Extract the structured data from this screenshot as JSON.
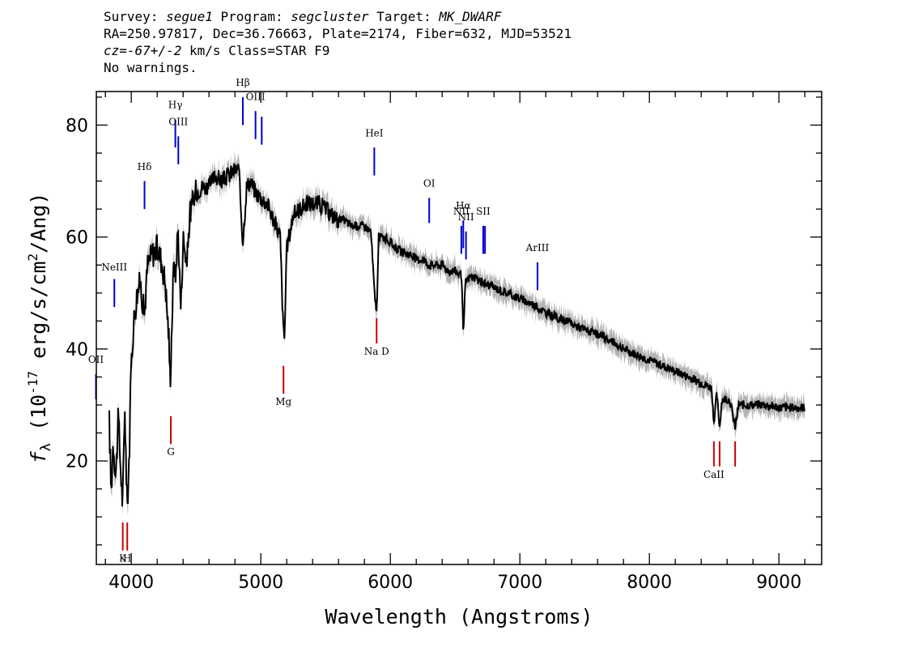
{
  "header": {
    "survey_label": "Survey:",
    "survey_value": "segue1",
    "program_label": "Program:",
    "program_value": "segcluster",
    "target_label": "Target:",
    "target_value": "MK_DWARF",
    "line2": "RA=250.97817, Dec=36.76663, Plate=2174, Fiber=632, MJD=53521",
    "cz_prefix": "cz=",
    "cz_value": "-67+/-2",
    "cz_suffix": " km/s Class=STAR F9",
    "line4": "No warnings."
  },
  "chart_data": {
    "type": "line",
    "xlabel": "Wavelength (Angstroms)",
    "ylabel_prefix": "f",
    "ylabel_sub": "λ",
    "ylabel_main": " (10",
    "ylabel_exp": "-17",
    "ylabel_rest": " erg/s/cm",
    "ylabel_exp2": "2",
    "ylabel_end": "/Ang)",
    "xlim": [
      3730,
      9330
    ],
    "ylim": [
      1.5,
      86
    ],
    "xticks": [
      4000,
      5000,
      6000,
      7000,
      8000,
      9000
    ],
    "yticks": [
      20,
      40,
      60,
      80
    ],
    "x_minor_step": 200,
    "y_minor_step": 5,
    "colors": {
      "spectrum": "#000000",
      "error_band": "#b4b4b4",
      "emission": "#0000cc",
      "absorption": "#cc0000"
    },
    "spectrum_anchors": [
      [
        3830,
        27
      ],
      [
        3845,
        14
      ],
      [
        3860,
        24
      ],
      [
        3880,
        17
      ],
      [
        3900,
        28
      ],
      [
        3915,
        20
      ],
      [
        3933,
        12
      ],
      [
        3950,
        30
      ],
      [
        3968,
        11
      ],
      [
        3985,
        22
      ],
      [
        4000,
        38
      ],
      [
        4020,
        45
      ],
      [
        4045,
        50
      ],
      [
        4070,
        52
      ],
      [
        4101,
        46
      ],
      [
        4125,
        55
      ],
      [
        4160,
        57
      ],
      [
        4200,
        58
      ],
      [
        4230,
        56
      ],
      [
        4262,
        52
      ],
      [
        4290,
        42
      ],
      [
        4300,
        34
      ],
      [
        4310,
        42
      ],
      [
        4330,
        57
      ],
      [
        4340,
        52
      ],
      [
        4360,
        62
      ],
      [
        4383,
        47
      ],
      [
        4400,
        60
      ],
      [
        4430,
        55
      ],
      [
        4450,
        64
      ],
      [
        4500,
        68
      ],
      [
        4550,
        69
      ],
      [
        4600,
        69
      ],
      [
        4650,
        71
      ],
      [
        4700,
        70
      ],
      [
        4750,
        71
      ],
      [
        4800,
        72
      ],
      [
        4830,
        72
      ],
      [
        4861,
        59
      ],
      [
        4890,
        69
      ],
      [
        4920,
        70
      ],
      [
        4960,
        68
      ],
      [
        5000,
        67
      ],
      [
        5050,
        66
      ],
      [
        5100,
        63
      ],
      [
        5150,
        60
      ],
      [
        5172,
        44
      ],
      [
        5183,
        42
      ],
      [
        5200,
        58
      ],
      [
        5250,
        64
      ],
      [
        5300,
        65
      ],
      [
        5350,
        66
      ],
      [
        5400,
        66
      ],
      [
        5450,
        66
      ],
      [
        5500,
        65
      ],
      [
        5550,
        64
      ],
      [
        5600,
        63
      ],
      [
        5650,
        63
      ],
      [
        5700,
        62
      ],
      [
        5750,
        62
      ],
      [
        5800,
        62
      ],
      [
        5850,
        61
      ],
      [
        5880,
        49
      ],
      [
        5896,
        47
      ],
      [
        5910,
        60
      ],
      [
        5950,
        60
      ],
      [
        6000,
        59
      ],
      [
        6050,
        58
      ],
      [
        6100,
        57
      ],
      [
        6150,
        57
      ],
      [
        6200,
        56
      ],
      [
        6250,
        56
      ],
      [
        6300,
        55
      ],
      [
        6350,
        55
      ],
      [
        6400,
        55
      ],
      [
        6450,
        54
      ],
      [
        6500,
        54
      ],
      [
        6550,
        53
      ],
      [
        6563,
        42
      ],
      [
        6580,
        52
      ],
      [
        6620,
        53
      ],
      [
        6700,
        52
      ],
      [
        6800,
        51
      ],
      [
        6900,
        50
      ],
      [
        7000,
        49
      ],
      [
        7100,
        48
      ],
      [
        7200,
        46.5
      ],
      [
        7300,
        45.5
      ],
      [
        7400,
        44.5
      ],
      [
        7500,
        43.5
      ],
      [
        7600,
        42.5
      ],
      [
        7700,
        41.5
      ],
      [
        7800,
        40
      ],
      [
        7900,
        39
      ],
      [
        8000,
        38
      ],
      [
        8100,
        37
      ],
      [
        8200,
        36
      ],
      [
        8300,
        35
      ],
      [
        8400,
        34
      ],
      [
        8480,
        33
      ],
      [
        8498,
        27
      ],
      [
        8520,
        32
      ],
      [
        8542,
        26
      ],
      [
        8560,
        31
      ],
      [
        8620,
        31
      ],
      [
        8662,
        26
      ],
      [
        8690,
        30
      ],
      [
        8800,
        30
      ],
      [
        8900,
        30
      ],
      [
        9000,
        29.5
      ],
      [
        9100,
        29.5
      ],
      [
        9200,
        29.5
      ]
    ],
    "emission_lines": [
      {
        "label": "OII",
        "x": 3727,
        "y0": 31,
        "y1": 35.5,
        "ly": 37.5
      },
      {
        "label": "NeIII",
        "x": 3869,
        "y0": 47.5,
        "y1": 52.5,
        "ly": 54
      },
      {
        "label": "Hδ",
        "x": 4102,
        "y0": 65,
        "y1": 70,
        "ly": 72
      },
      {
        "label": "Hγ",
        "x": 4340,
        "y0": 76,
        "y1": 81,
        "ly": 83
      },
      {
        "label": "OIII",
        "x": 4363,
        "y0": 73,
        "y1": 78,
        "ly": 80
      },
      {
        "label": "Hβ",
        "x": 4861,
        "y0": 80,
        "y1": 85,
        "ly": 87
      },
      {
        "label": "OIII",
        "x": 4959,
        "y0": 77.5,
        "y1": 82.5,
        "ly": 84.5
      },
      {
        "label": "",
        "x": 5007,
        "y0": 76.5,
        "y1": 81.5,
        "ly": 83.5
      },
      {
        "label": "HeI",
        "x": 5876,
        "y0": 71,
        "y1": 76,
        "ly": 78
      },
      {
        "label": "OI",
        "x": 6300,
        "y0": 62.5,
        "y1": 67,
        "ly": 69
      },
      {
        "label": "NII",
        "x": 6548,
        "y0": 57,
        "y1": 62,
        "ly": 64
      },
      {
        "label": "Hα",
        "x": 6563,
        "y0": 58,
        "y1": 63,
        "ly": 65
      },
      {
        "label": "NII",
        "x": 6584,
        "y0": 56,
        "y1": 61,
        "ly": 63
      },
      {
        "label": "SII",
        "x": 6717,
        "y0": 57,
        "y1": 62,
        "ly": 64
      },
      {
        "label": "",
        "x": 6731,
        "y0": 57,
        "y1": 62,
        "ly": 64
      },
      {
        "label": "ArIII",
        "x": 7136,
        "y0": 50.5,
        "y1": 55.5,
        "ly": 57.5
      }
    ],
    "absorption_lines": [
      {
        "label": "K",
        "x": 3934,
        "y0": 4,
        "y1": 9,
        "ly": 2
      },
      {
        "label": "H",
        "x": 3969,
        "y0": 4,
        "y1": 9,
        "ly": 2
      },
      {
        "label": "G",
        "x": 4305,
        "y0": 23,
        "y1": 28,
        "ly": 21
      },
      {
        "label": "Mg",
        "x": 5175,
        "y0": 32,
        "y1": 37,
        "ly": 30
      },
      {
        "label": "Na D",
        "x": 5894,
        "y0": 41,
        "y1": 45.5,
        "ly": 39
      },
      {
        "label": "CaII",
        "x": 8498,
        "y0": 19,
        "y1": 23.5,
        "ly": 17
      },
      {
        "label": "",
        "x": 8542,
        "y0": 19,
        "y1": 23.5,
        "ly": 17
      },
      {
        "label": "",
        "x": 8662,
        "y0": 19,
        "y1": 23.5,
        "ly": 17
      }
    ]
  }
}
